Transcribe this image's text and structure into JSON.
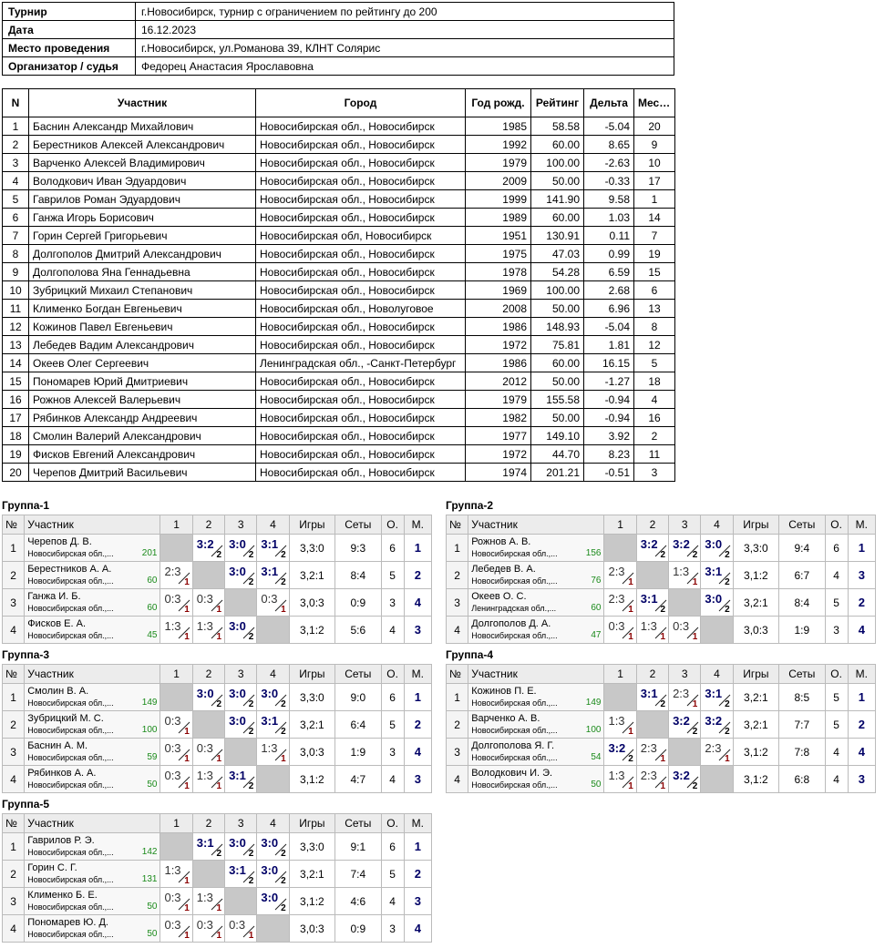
{
  "info": [
    {
      "k": "Турнир",
      "v": "г.Новосибирск, турнир с ограничением по рейтингу до 200"
    },
    {
      "k": "Дата",
      "v": "16.12.2023"
    },
    {
      "k": "Место проведения",
      "v": "г.Новосибирск, ул.Романова 39, КЛНТ Солярис"
    },
    {
      "k": "Организатор / судья",
      "v": "Федорец Анастасия Ярославовна"
    }
  ],
  "participants_headers": [
    "N",
    "Участник",
    "Город",
    "Год рожд.",
    "Рейтинг",
    "Дельта",
    "Место"
  ],
  "participants": [
    {
      "n": "1",
      "name": "Баснин Александр Михайлович",
      "city": "Новосибирская обл., Новосибирск",
      "year": "1985",
      "rating": "58.58",
      "delta": "-5.04",
      "place": "20"
    },
    {
      "n": "2",
      "name": "Берестников Алексей Александрович",
      "city": "Новосибирская обл., Новосибирск",
      "year": "1992",
      "rating": "60.00",
      "delta": "8.65",
      "place": "9"
    },
    {
      "n": "3",
      "name": "Варченко Алексей Владимирович",
      "city": "Новосибирская обл., Новосибирск",
      "year": "1979",
      "rating": "100.00",
      "delta": "-2.63",
      "place": "10"
    },
    {
      "n": "4",
      "name": "Володкович Иван Эдуардович",
      "city": "Новосибирская обл., Новосибирск",
      "year": "2009",
      "rating": "50.00",
      "delta": "-0.33",
      "place": "17"
    },
    {
      "n": "5",
      "name": "Гаврилов Роман Эдуардович",
      "city": "Новосибирская обл., Новосибирск",
      "year": "1999",
      "rating": "141.90",
      "delta": "9.58",
      "place": "1"
    },
    {
      "n": "6",
      "name": "Ганжа Игорь Борисович",
      "city": "Новосибирская обл., Новосибирск",
      "year": "1989",
      "rating": "60.00",
      "delta": "1.03",
      "place": "14"
    },
    {
      "n": "7",
      "name": "Горин Сергей Григорьевич",
      "city": "Новосибирская обл, Новосибирск",
      "year": "1951",
      "rating": "130.91",
      "delta": "0.11",
      "place": "7"
    },
    {
      "n": "8",
      "name": "Долгополов Дмитрий Александрович",
      "city": "Новосибирская обл., Новосибирск",
      "year": "1975",
      "rating": "47.03",
      "delta": "0.99",
      "place": "19"
    },
    {
      "n": "9",
      "name": "Долгополова Яна Геннадьевна",
      "city": "Новосибирская обл., Новосибирск",
      "year": "1978",
      "rating": "54.28",
      "delta": "6.59",
      "place": "15"
    },
    {
      "n": "10",
      "name": "Зубрицкий Михаил Степанович",
      "city": "Новосибирская обл., Новосибирск",
      "year": "1969",
      "rating": "100.00",
      "delta": "2.68",
      "place": "6"
    },
    {
      "n": "11",
      "name": "Клименко Богдан Евгеньевич",
      "city": "Новосибирская обл., Новолуговое",
      "year": "2008",
      "rating": "50.00",
      "delta": "6.96",
      "place": "13"
    },
    {
      "n": "12",
      "name": "Кожинов Павел Евгеньевич",
      "city": "Новосибирская обл., Новосибирск",
      "year": "1986",
      "rating": "148.93",
      "delta": "-5.04",
      "place": "8"
    },
    {
      "n": "13",
      "name": "Лебедев Вадим Александрович",
      "city": "Новосибирская обл., Новосибирск",
      "year": "1972",
      "rating": "75.81",
      "delta": "1.81",
      "place": "12"
    },
    {
      "n": "14",
      "name": "Океев Олег Сергеевич",
      "city": "Ленинградская обл., -Санкт-Петербург",
      "year": "1986",
      "rating": "60.00",
      "delta": "16.15",
      "place": "5"
    },
    {
      "n": "15",
      "name": "Пономарев Юрий Дмитриевич",
      "city": "Новосибирская обл., Новосибирск",
      "year": "2012",
      "rating": "50.00",
      "delta": "-1.27",
      "place": "18"
    },
    {
      "n": "16",
      "name": "Рожнов Алексей Валерьевич",
      "city": "Новосибирская обл., Новосибирск",
      "year": "1979",
      "rating": "155.58",
      "delta": "-0.94",
      "place": "4"
    },
    {
      "n": "17",
      "name": "Рябинков Александр Андреевич",
      "city": "Новосибирская обл., Новосибирск",
      "year": "1982",
      "rating": "50.00",
      "delta": "-0.94",
      "place": "16"
    },
    {
      "n": "18",
      "name": "Смолин Валерий Александрович",
      "city": "Новосибирская обл., Новосибирск",
      "year": "1977",
      "rating": "149.10",
      "delta": "3.92",
      "place": "2"
    },
    {
      "n": "19",
      "name": "Фисков Евгений Александрович",
      "city": "Новосибирская обл., Новосибирск",
      "year": "1972",
      "rating": "44.70",
      "delta": "8.23",
      "place": "11"
    },
    {
      "n": "20",
      "name": "Черепов Дмитрий Васильевич",
      "city": "Новосибирская обл., Новосибирск",
      "year": "1974",
      "rating": "201.21",
      "delta": "-0.51",
      "place": "3"
    }
  ],
  "group_headers": [
    "№",
    "Участник",
    "1",
    "2",
    "3",
    "4",
    "Игры",
    "Сеты",
    "О.",
    "М."
  ],
  "groups": [
    {
      "title": "Группа-1",
      "rows": [
        {
          "n": "1",
          "name": "Черепов Д. В.",
          "city": "Новосибирская обл.,...",
          "rating": "201",
          "res": [
            null,
            [
              "3:2",
              "2"
            ],
            [
              "3:0",
              "2"
            ],
            [
              "3:1",
              "2"
            ]
          ],
          "games": "3,3:0",
          "sets": "9:3",
          "o": "6",
          "m": "1"
        },
        {
          "n": "2",
          "name": "Берестников А. А.",
          "city": "Новосибирская обл.,...",
          "rating": "60",
          "res": [
            [
              "2:3",
              "1"
            ],
            null,
            [
              "3:0",
              "2"
            ],
            [
              "3:1",
              "2"
            ]
          ],
          "games": "3,2:1",
          "sets": "8:4",
          "o": "5",
          "m": "2"
        },
        {
          "n": "3",
          "name": "Ганжа И. Б.",
          "city": "Новосибирская обл.,...",
          "rating": "60",
          "res": [
            [
              "0:3",
              "1"
            ],
            [
              "0:3",
              "1"
            ],
            null,
            [
              "0:3",
              "1"
            ]
          ],
          "games": "3,0:3",
          "sets": "0:9",
          "o": "3",
          "m": "4"
        },
        {
          "n": "4",
          "name": "Фисков Е. А.",
          "city": "Новосибирская обл.,...",
          "rating": "45",
          "res": [
            [
              "1:3",
              "1"
            ],
            [
              "1:3",
              "1"
            ],
            [
              "3:0",
              "2"
            ],
            null
          ],
          "games": "3,1:2",
          "sets": "5:6",
          "o": "4",
          "m": "3"
        }
      ]
    },
    {
      "title": "Группа-2",
      "rows": [
        {
          "n": "1",
          "name": "Рожнов А. В.",
          "city": "Новосибирская обл.,...",
          "rating": "156",
          "res": [
            null,
            [
              "3:2",
              "2"
            ],
            [
              "3:2",
              "2"
            ],
            [
              "3:0",
              "2"
            ]
          ],
          "games": "3,3:0",
          "sets": "9:4",
          "o": "6",
          "m": "1"
        },
        {
          "n": "2",
          "name": "Лебедев В. А.",
          "city": "Новосибирская обл.,...",
          "rating": "76",
          "res": [
            [
              "2:3",
              "1"
            ],
            null,
            [
              "1:3",
              "1"
            ],
            [
              "3:1",
              "2"
            ]
          ],
          "games": "3,1:2",
          "sets": "6:7",
          "o": "4",
          "m": "3"
        },
        {
          "n": "3",
          "name": "Океев О. С.",
          "city": "Ленинградская обл.,...",
          "rating": "60",
          "res": [
            [
              "2:3",
              "1"
            ],
            [
              "3:1",
              "2"
            ],
            null,
            [
              "3:0",
              "2"
            ]
          ],
          "games": "3,2:1",
          "sets": "8:4",
          "o": "5",
          "m": "2"
        },
        {
          "n": "4",
          "name": "Долгополов Д. А.",
          "city": "Новосибирская обл.,...",
          "rating": "47",
          "res": [
            [
              "0:3",
              "1"
            ],
            [
              "1:3",
              "1"
            ],
            [
              "0:3",
              "1"
            ],
            null
          ],
          "games": "3,0:3",
          "sets": "1:9",
          "o": "3",
          "m": "4"
        }
      ]
    },
    {
      "title": "Группа-3",
      "rows": [
        {
          "n": "1",
          "name": "Смолин В. А.",
          "city": "Новосибирская обл.,...",
          "rating": "149",
          "res": [
            null,
            [
              "3:0",
              "2"
            ],
            [
              "3:0",
              "2"
            ],
            [
              "3:0",
              "2"
            ]
          ],
          "games": "3,3:0",
          "sets": "9:0",
          "o": "6",
          "m": "1"
        },
        {
          "n": "2",
          "name": "Зубрицкий М. С.",
          "city": "Новосибирская обл.,...",
          "rating": "100",
          "res": [
            [
              "0:3",
              "1"
            ],
            null,
            [
              "3:0",
              "2"
            ],
            [
              "3:1",
              "2"
            ]
          ],
          "games": "3,2:1",
          "sets": "6:4",
          "o": "5",
          "m": "2"
        },
        {
          "n": "3",
          "name": "Баснин А. М.",
          "city": "Новосибирская обл.,...",
          "rating": "59",
          "res": [
            [
              "0:3",
              "1"
            ],
            [
              "0:3",
              "1"
            ],
            null,
            [
              "1:3",
              "1"
            ]
          ],
          "games": "3,0:3",
          "sets": "1:9",
          "o": "3",
          "m": "4"
        },
        {
          "n": "4",
          "name": "Рябинков А. А.",
          "city": "Новосибирская обл.,...",
          "rating": "50",
          "res": [
            [
              "0:3",
              "1"
            ],
            [
              "1:3",
              "1"
            ],
            [
              "3:1",
              "2"
            ],
            null
          ],
          "games": "3,1:2",
          "sets": "4:7",
          "o": "4",
          "m": "3"
        }
      ]
    },
    {
      "title": "Группа-4",
      "rows": [
        {
          "n": "1",
          "name": "Кожинов П. Е.",
          "city": "Новосибирская обл.,...",
          "rating": "149",
          "res": [
            null,
            [
              "3:1",
              "2"
            ],
            [
              "2:3",
              "1"
            ],
            [
              "3:1",
              "2"
            ]
          ],
          "games": "3,2:1",
          "sets": "8:5",
          "o": "5",
          "m": "1"
        },
        {
          "n": "2",
          "name": "Варченко А. В.",
          "city": "Новосибирская обл.,...",
          "rating": "100",
          "res": [
            [
              "1:3",
              "1"
            ],
            null,
            [
              "3:2",
              "2"
            ],
            [
              "3:2",
              "2"
            ]
          ],
          "games": "3,2:1",
          "sets": "7:7",
          "o": "5",
          "m": "2"
        },
        {
          "n": "3",
          "name": "Долгополова Я. Г.",
          "city": "Новосибирская обл.,...",
          "rating": "54",
          "res": [
            [
              "3:2",
              "2"
            ],
            [
              "2:3",
              "1"
            ],
            null,
            [
              "2:3",
              "1"
            ]
          ],
          "games": "3,1:2",
          "sets": "7:8",
          "o": "4",
          "m": "4"
        },
        {
          "n": "4",
          "name": "Володкович И. Э.",
          "city": "Новосибирская обл.,...",
          "rating": "50",
          "res": [
            [
              "1:3",
              "1"
            ],
            [
              "2:3",
              "1"
            ],
            [
              "3:2",
              "2"
            ],
            null
          ],
          "games": "3,1:2",
          "sets": "6:8",
          "o": "4",
          "m": "3"
        }
      ]
    },
    {
      "title": "Группа-5",
      "rows": [
        {
          "n": "1",
          "name": "Гаврилов Р. Э.",
          "city": "Новосибирская обл.,...",
          "rating": "142",
          "res": [
            null,
            [
              "3:1",
              "2"
            ],
            [
              "3:0",
              "2"
            ],
            [
              "3:0",
              "2"
            ]
          ],
          "games": "3,3:0",
          "sets": "9:1",
          "o": "6",
          "m": "1"
        },
        {
          "n": "2",
          "name": "Горин С. Г.",
          "city": "Новосибирская обл.,...",
          "rating": "131",
          "res": [
            [
              "1:3",
              "1"
            ],
            null,
            [
              "3:1",
              "2"
            ],
            [
              "3:0",
              "2"
            ]
          ],
          "games": "3,2:1",
          "sets": "7:4",
          "o": "5",
          "m": "2"
        },
        {
          "n": "3",
          "name": "Клименко Б. Е.",
          "city": "Новосибирская обл.,...",
          "rating": "50",
          "res": [
            [
              "0:3",
              "1"
            ],
            [
              "1:3",
              "1"
            ],
            null,
            [
              "3:0",
              "2"
            ]
          ],
          "games": "3,1:2",
          "sets": "4:6",
          "o": "4",
          "m": "3"
        },
        {
          "n": "4",
          "name": "Пономарев Ю. Д.",
          "city": "Новосибирская обл.,...",
          "rating": "50",
          "res": [
            [
              "0:3",
              "1"
            ],
            [
              "0:3",
              "1"
            ],
            [
              "0:3",
              "1"
            ],
            null
          ],
          "games": "3,0:3",
          "sets": "0:9",
          "o": "3",
          "m": "4"
        }
      ]
    }
  ]
}
